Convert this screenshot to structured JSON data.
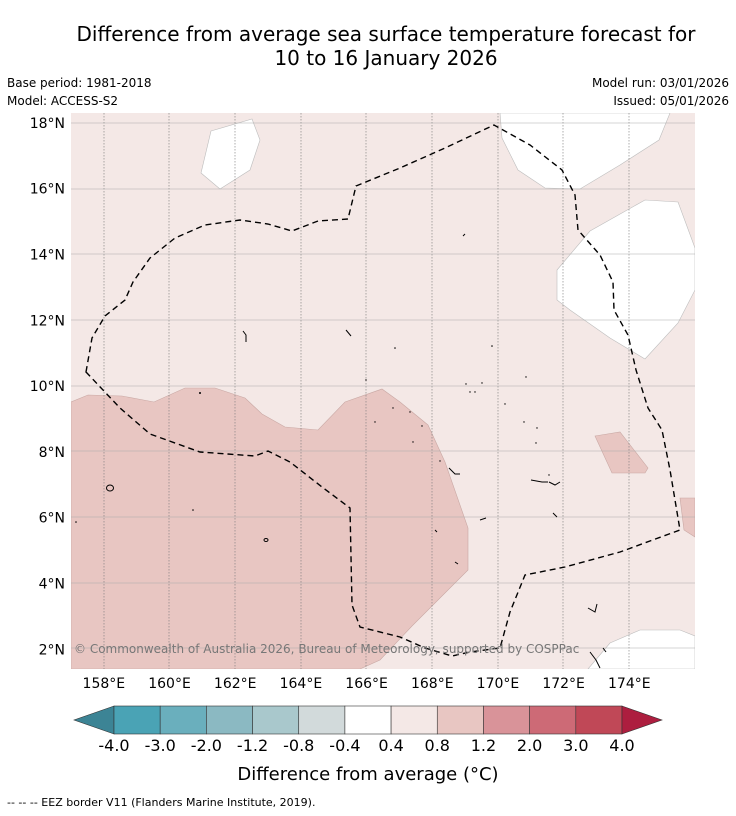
{
  "title": {
    "line1": "Difference from average sea surface temperature forecast for",
    "line2": "10 to 16 January 2026"
  },
  "meta": {
    "base_period": "Base period: 1981-2018",
    "model": "Model: ACCESS-S2",
    "model_run": "Model run: 03/01/2026",
    "issued": "Issued: 05/01/2026"
  },
  "map": {
    "lat_range": [
      1.4,
      18.3
    ],
    "lon_range": [
      157.0,
      176.0
    ],
    "lat_labels": [
      "18°N",
      "16°N",
      "14°N",
      "12°N",
      "10°N",
      "8°N",
      "6°N",
      "4°N",
      "2°N"
    ],
    "lat_values": [
      18,
      16,
      14,
      12,
      10,
      8,
      6,
      4,
      2
    ],
    "lon_labels": [
      "158°E",
      "160°E",
      "162°E",
      "164°E",
      "166°E",
      "168°E",
      "170°E",
      "172°E",
      "174°E"
    ],
    "lon_values": [
      158,
      160,
      162,
      164,
      166,
      168,
      170,
      172,
      174
    ],
    "copyright": "© Commonwealth of Australia 2026, Bureau of Meteorology, supported by COSPPac"
  },
  "colorbar": {
    "tick_labels": [
      "-4.0",
      "-3.0",
      "-2.0",
      "-1.2",
      "-0.8",
      "-0.4",
      "0.4",
      "0.8",
      "1.2",
      "2.0",
      "3.0",
      "4.0"
    ],
    "colors": [
      "#4aa3b5",
      "#6aafbd",
      "#8bb9c2",
      "#a9c8cc",
      "#d2dadb",
      "#ffffff",
      "#f4e8e6",
      "#e8c6c2",
      "#d99399",
      "#cd6a76",
      "#c04857"
    ],
    "under_color": "#3c8495",
    "over_color": "#ad1e3f",
    "label": "Difference from average (°C)"
  },
  "footer": "--  --  -- EEZ border V11 (Flanders Marine Institute, 2019)."
}
